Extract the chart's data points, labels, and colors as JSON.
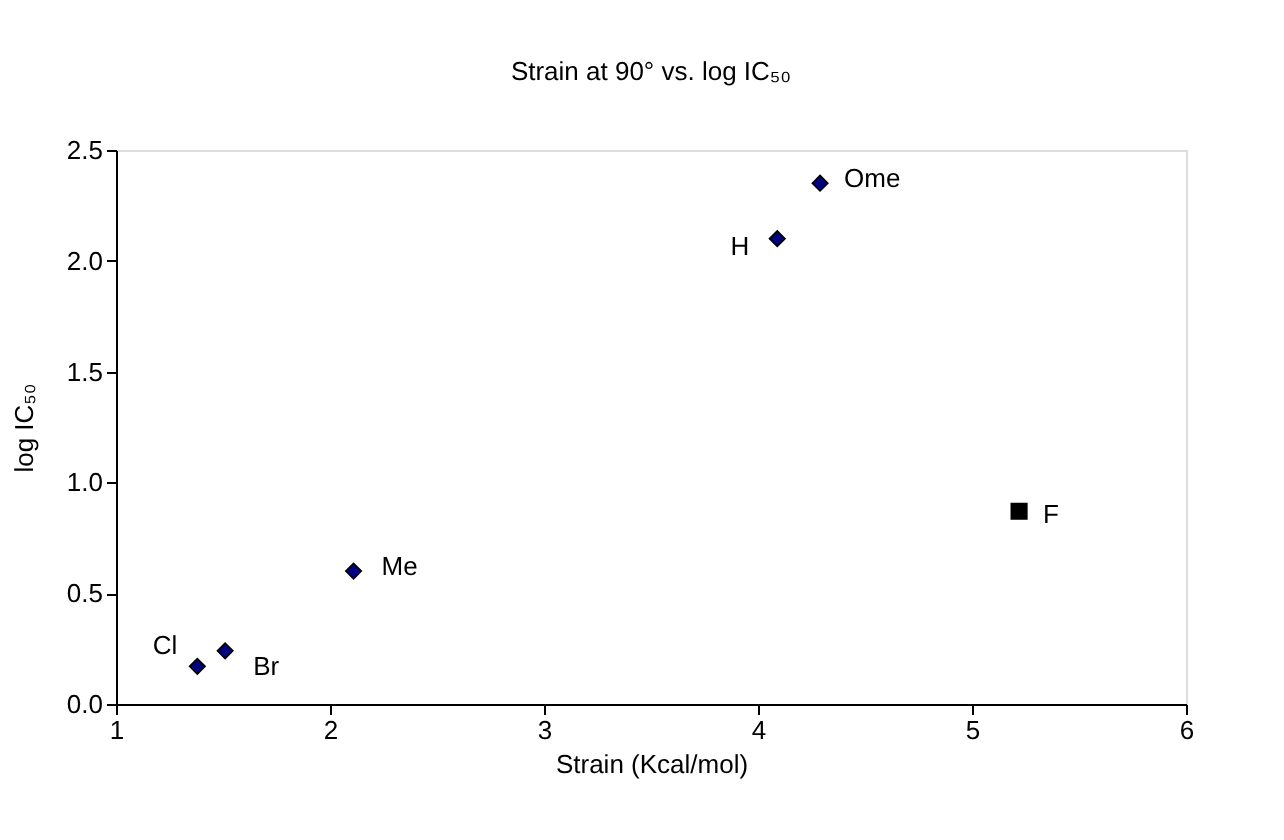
{
  "chart_data": {
    "type": "scatter",
    "title": "Strain at 90° vs. log IC₅₀",
    "xlabel": "Strain (Kcal/mol)",
    "ylabel": "log IC₅₀",
    "series": [
      {
        "color": "#000080",
        "marker": "diamond",
        "x": [
          1.38,
          1.51,
          2.11,
          4.09,
          4.29
        ],
        "values": [
          0.17,
          0.24,
          0.6,
          2.1,
          2.35
        ]
      },
      {
        "color": "#000000",
        "marker": "square",
        "x": [
          5.22
        ],
        "values": [
          0.87
        ]
      }
    ],
    "annotations": [
      {
        "text": "Cl",
        "x": 1.38,
        "y": 0.17
      },
      {
        "text": "Br",
        "x": 1.51,
        "y": 0.24
      },
      {
        "text": "Me",
        "x": 2.11,
        "y": 0.6
      },
      {
        "text": "H",
        "x": 4.09,
        "y": 2.1
      },
      {
        "text": "Ome",
        "x": 4.29,
        "y": 2.35
      },
      {
        "text": "F",
        "x": 5.22,
        "y": 0.87
      }
    ],
    "xlim": [
      1,
      6
    ],
    "xticks": [
      1,
      2,
      3,
      4,
      5,
      6
    ],
    "ylim": [
      0,
      2.5
    ],
    "yticks": [
      {
        "value": 0,
        "label": "0.0"
      },
      0.5,
      {
        "value": 1,
        "label": "1.0"
      },
      1.5,
      {
        "value": 2,
        "label": "2.0"
      },
      2.5
    ],
    "grid": false
  }
}
